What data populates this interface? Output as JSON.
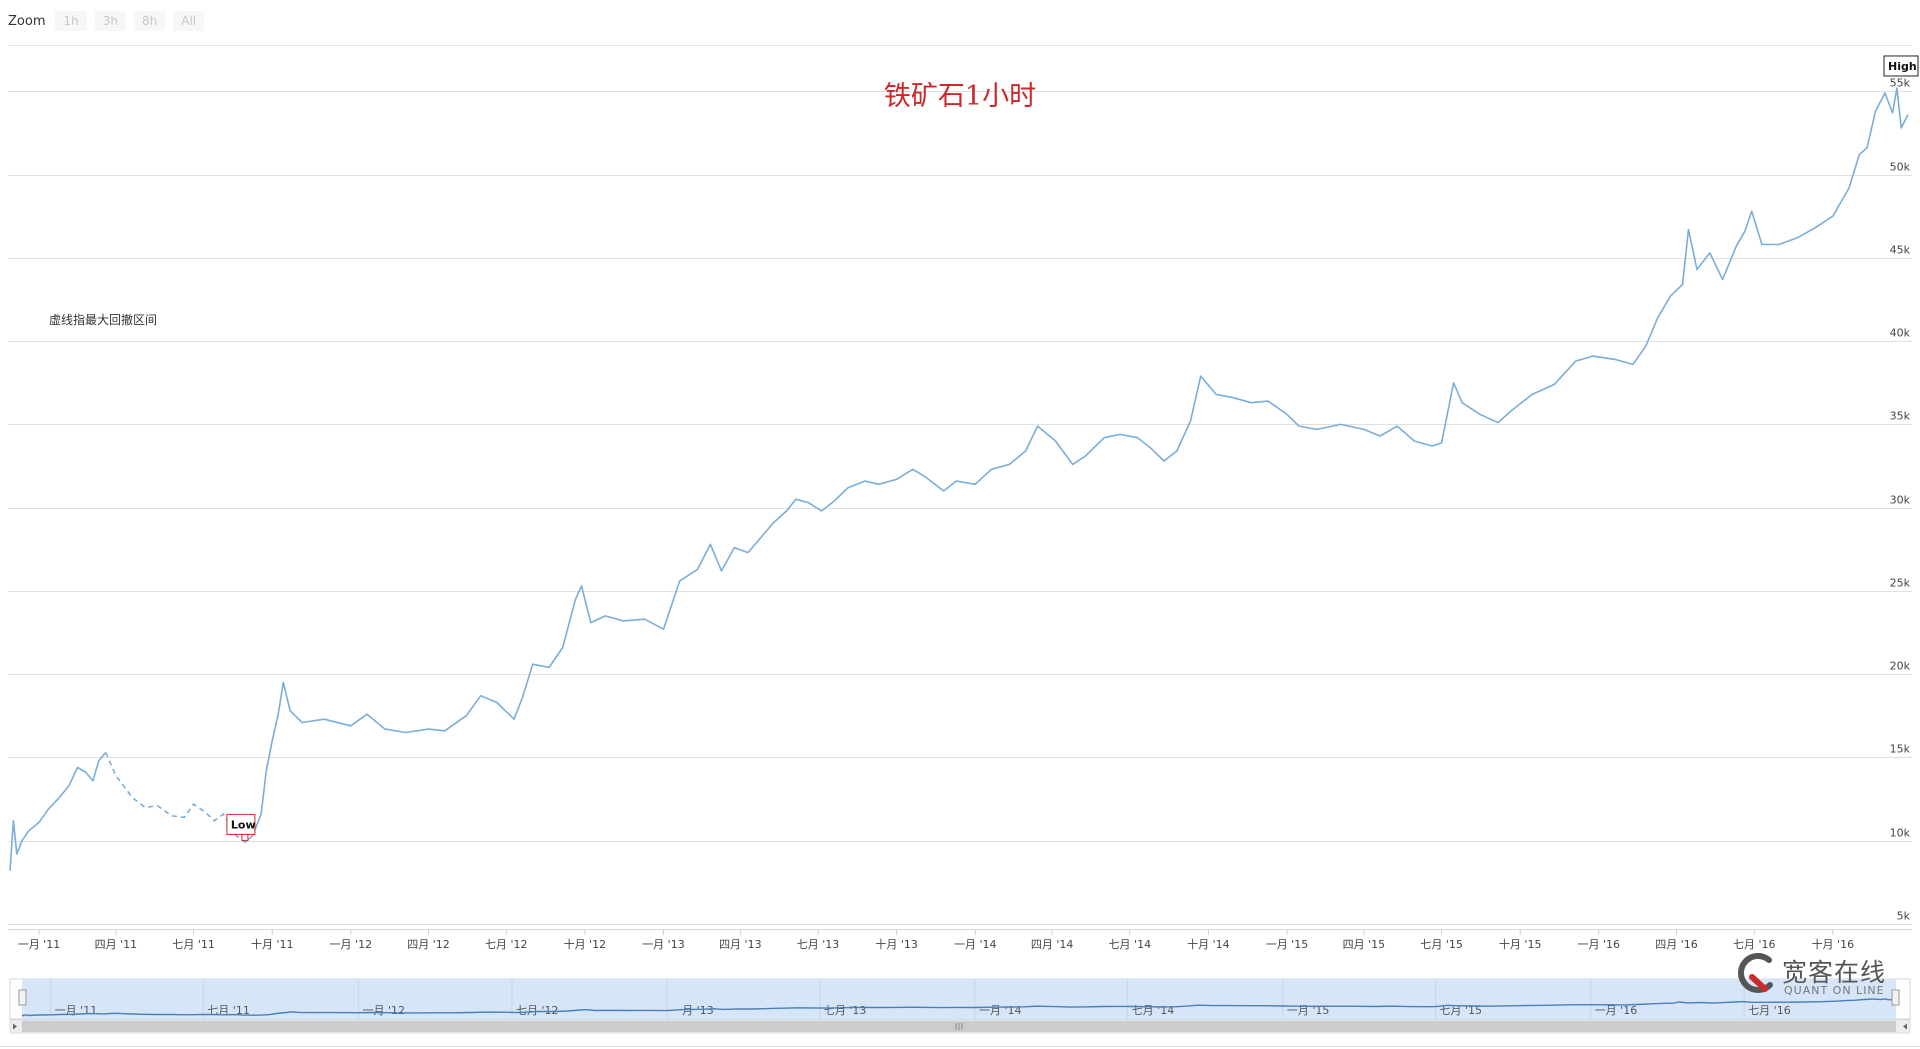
{
  "zoom": {
    "label": "Zoom",
    "buttons": [
      "1h",
      "3h",
      "8h",
      "All"
    ]
  },
  "annotation_note": "虚线指最大回撤区间",
  "watermark": {
    "cn": "宽客在线",
    "en": "QUANT ON LINE"
  },
  "colors": {
    "line": "#7aaed8",
    "title": "#cc2a2a",
    "grid": "#e0e0e0",
    "navigator_fill": "#d6e6f8",
    "navigator_line": "#4a7fb8",
    "low_box": "#cc2a2a"
  },
  "chart_data": {
    "type": "line",
    "title": "铁矿石1小时",
    "xlabel": "",
    "ylabel": "",
    "x_range": [
      "2010-11-28",
      "2016-12-28"
    ],
    "ylim": [
      5000,
      57000
    ],
    "y_ticks": [
      5000,
      10000,
      15000,
      20000,
      25000,
      30000,
      35000,
      40000,
      45000,
      50000,
      55000
    ],
    "y_tick_labels": [
      "5k",
      "10k",
      "15k",
      "20k",
      "25k",
      "30k",
      "35k",
      "40k",
      "45k",
      "50k",
      "55k"
    ],
    "x_ticks": [
      {
        "date": "2011-01-01",
        "label": "一月 '11"
      },
      {
        "date": "2011-04-01",
        "label": "四月 '11"
      },
      {
        "date": "2011-07-01",
        "label": "七月 '11"
      },
      {
        "date": "2011-10-01",
        "label": "十月 '11"
      },
      {
        "date": "2012-01-01",
        "label": "一月 '12"
      },
      {
        "date": "2012-04-01",
        "label": "四月 '12"
      },
      {
        "date": "2012-07-01",
        "label": "七月 '12"
      },
      {
        "date": "2012-10-01",
        "label": "十月 '12"
      },
      {
        "date": "2013-01-01",
        "label": "一月 '13"
      },
      {
        "date": "2013-04-01",
        "label": "四月 '13"
      },
      {
        "date": "2013-07-01",
        "label": "七月 '13"
      },
      {
        "date": "2013-10-01",
        "label": "十月 '13"
      },
      {
        "date": "2014-01-01",
        "label": "一月 '14"
      },
      {
        "date": "2014-04-01",
        "label": "四月 '14"
      },
      {
        "date": "2014-07-01",
        "label": "七月 '14"
      },
      {
        "date": "2014-10-01",
        "label": "十月 '14"
      },
      {
        "date": "2015-01-01",
        "label": "一月 '15"
      },
      {
        "date": "2015-04-01",
        "label": "四月 '15"
      },
      {
        "date": "2015-07-01",
        "label": "七月 '15"
      },
      {
        "date": "2015-10-01",
        "label": "十月 '15"
      },
      {
        "date": "2016-01-01",
        "label": "一月 '16"
      },
      {
        "date": "2016-04-01",
        "label": "四月 '16"
      },
      {
        "date": "2016-07-01",
        "label": "七月 '16"
      },
      {
        "date": "2016-10-01",
        "label": "十月 '16"
      }
    ],
    "grid": true,
    "legend": "none",
    "series": [
      {
        "dashed_range": [
          "2011-03-20",
          "2011-08-30"
        ],
        "points": [
          [
            "2010-11-28",
            8200
          ],
          [
            "2010-12-02",
            11200
          ],
          [
            "2010-12-06",
            9200
          ],
          [
            "2010-12-12",
            10000
          ],
          [
            "2010-12-20",
            10600
          ],
          [
            "2011-01-01",
            11100
          ],
          [
            "2011-01-12",
            11900
          ],
          [
            "2011-01-25",
            12600
          ],
          [
            "2011-02-05",
            13300
          ],
          [
            "2011-02-15",
            14400
          ],
          [
            "2011-02-25",
            14100
          ],
          [
            "2011-03-05",
            13600
          ],
          [
            "2011-03-12",
            14800
          ],
          [
            "2011-03-20",
            15300
          ],
          [
            "2011-04-01",
            13900
          ],
          [
            "2011-04-10",
            13300
          ],
          [
            "2011-04-20",
            12600
          ],
          [
            "2011-05-05",
            12000
          ],
          [
            "2011-05-20",
            12100
          ],
          [
            "2011-06-05",
            11500
          ],
          [
            "2011-06-20",
            11400
          ],
          [
            "2011-07-01",
            12200
          ],
          [
            "2011-07-15",
            11700
          ],
          [
            "2011-07-25",
            11200
          ],
          [
            "2011-08-05",
            11600
          ],
          [
            "2011-08-18",
            10400
          ],
          [
            "2011-08-30",
            9900
          ],
          [
            "2011-09-08",
            10300
          ],
          [
            "2011-09-18",
            11600
          ],
          [
            "2011-09-24",
            14200
          ],
          [
            "2011-10-01",
            16000
          ],
          [
            "2011-10-08",
            17600
          ],
          [
            "2011-10-14",
            19500
          ],
          [
            "2011-10-22",
            17800
          ],
          [
            "2011-11-05",
            17100
          ],
          [
            "2011-12-01",
            17300
          ],
          [
            "2012-01-01",
            16900
          ],
          [
            "2012-01-20",
            17600
          ],
          [
            "2012-02-10",
            16700
          ],
          [
            "2012-03-05",
            16500
          ],
          [
            "2012-04-01",
            16700
          ],
          [
            "2012-04-20",
            16600
          ],
          [
            "2012-05-15",
            17500
          ],
          [
            "2012-06-01",
            18700
          ],
          [
            "2012-06-20",
            18300
          ],
          [
            "2012-07-10",
            17300
          ],
          [
            "2012-07-20",
            18600
          ],
          [
            "2012-08-01",
            20600
          ],
          [
            "2012-08-20",
            20400
          ],
          [
            "2012-09-05",
            21600
          ],
          [
            "2012-09-20",
            24500
          ],
          [
            "2012-09-27",
            25300
          ],
          [
            "2012-10-08",
            23100
          ],
          [
            "2012-10-25",
            23500
          ],
          [
            "2012-11-15",
            23200
          ],
          [
            "2012-12-10",
            23300
          ],
          [
            "2013-01-01",
            22700
          ],
          [
            "2013-01-20",
            25600
          ],
          [
            "2013-02-10",
            26300
          ],
          [
            "2013-02-25",
            27800
          ],
          [
            "2013-03-10",
            26200
          ],
          [
            "2013-03-25",
            27600
          ],
          [
            "2013-04-10",
            27300
          ],
          [
            "2013-04-25",
            28200
          ],
          [
            "2013-05-10",
            29100
          ],
          [
            "2013-05-25",
            29800
          ],
          [
            "2013-06-05",
            30500
          ],
          [
            "2013-06-20",
            30300
          ],
          [
            "2013-07-05",
            29800
          ],
          [
            "2013-07-20",
            30400
          ],
          [
            "2013-08-05",
            31200
          ],
          [
            "2013-08-25",
            31600
          ],
          [
            "2013-09-10",
            31400
          ],
          [
            "2013-10-01",
            31700
          ],
          [
            "2013-10-20",
            32300
          ],
          [
            "2013-11-05",
            31800
          ],
          [
            "2013-11-25",
            31000
          ],
          [
            "2013-12-10",
            31600
          ],
          [
            "2014-01-01",
            31400
          ],
          [
            "2014-01-20",
            32300
          ],
          [
            "2014-02-10",
            32600
          ],
          [
            "2014-03-01",
            33400
          ],
          [
            "2014-03-15",
            34900
          ],
          [
            "2014-04-05",
            34000
          ],
          [
            "2014-04-25",
            32600
          ],
          [
            "2014-05-10",
            33100
          ],
          [
            "2014-06-01",
            34200
          ],
          [
            "2014-06-20",
            34400
          ],
          [
            "2014-07-10",
            34200
          ],
          [
            "2014-07-25",
            33600
          ],
          [
            "2014-08-10",
            32800
          ],
          [
            "2014-08-25",
            33400
          ],
          [
            "2014-09-10",
            35200
          ],
          [
            "2014-09-22",
            37900
          ],
          [
            "2014-10-10",
            36800
          ],
          [
            "2014-10-30",
            36600
          ],
          [
            "2014-11-20",
            36300
          ],
          [
            "2014-12-10",
            36400
          ],
          [
            "2015-01-01",
            35600
          ],
          [
            "2015-01-15",
            34900
          ],
          [
            "2015-02-05",
            34700
          ],
          [
            "2015-03-05",
            35000
          ],
          [
            "2015-04-01",
            34700
          ],
          [
            "2015-04-20",
            34300
          ],
          [
            "2015-05-10",
            34900
          ],
          [
            "2015-05-30",
            34000
          ],
          [
            "2015-06-20",
            33700
          ],
          [
            "2015-07-01",
            33900
          ],
          [
            "2015-07-10",
            36200
          ],
          [
            "2015-07-15",
            37500
          ],
          [
            "2015-07-25",
            36300
          ],
          [
            "2015-08-15",
            35600
          ],
          [
            "2015-09-05",
            35100
          ],
          [
            "2015-09-20",
            35800
          ],
          [
            "2015-10-15",
            36800
          ],
          [
            "2015-11-10",
            37400
          ],
          [
            "2015-12-05",
            38800
          ],
          [
            "2015-12-25",
            39100
          ],
          [
            "2016-01-20",
            38900
          ],
          [
            "2016-02-10",
            38600
          ],
          [
            "2016-02-25",
            39700
          ],
          [
            "2016-03-10",
            41400
          ],
          [
            "2016-03-25",
            42700
          ],
          [
            "2016-04-08",
            43400
          ],
          [
            "2016-04-15",
            46700
          ],
          [
            "2016-04-25",
            44300
          ],
          [
            "2016-05-10",
            45300
          ],
          [
            "2016-05-25",
            43700
          ],
          [
            "2016-06-10",
            45700
          ],
          [
            "2016-06-20",
            46600
          ],
          [
            "2016-06-28",
            47800
          ],
          [
            "2016-07-10",
            45800
          ],
          [
            "2016-07-30",
            45800
          ],
          [
            "2016-08-20",
            46200
          ],
          [
            "2016-09-10",
            46800
          ],
          [
            "2016-10-01",
            47500
          ],
          [
            "2016-10-20",
            49200
          ],
          [
            "2016-11-01",
            51200
          ],
          [
            "2016-11-10",
            51600
          ],
          [
            "2016-11-20",
            53800
          ],
          [
            "2016-12-01",
            54900
          ],
          [
            "2016-12-10",
            53700
          ],
          [
            "2016-12-15",
            55200
          ],
          [
            "2016-12-20",
            52800
          ],
          [
            "2016-12-28",
            53600
          ]
        ]
      }
    ],
    "annotations": [
      {
        "label": "Low",
        "date": "2011-08-30",
        "value": 9900
      },
      {
        "label": "High",
        "date": "2016-12-15",
        "value": 55200
      }
    ],
    "navigator": {
      "x_ticks": [
        {
          "date": "2011-01-01",
          "label": "一月 '11"
        },
        {
          "date": "2011-07-01",
          "label": "七月 '11"
        },
        {
          "date": "2012-01-01",
          "label": "一月 '12"
        },
        {
          "date": "2012-07-01",
          "label": "七月 '12"
        },
        {
          "date": "2013-01-01",
          "label": "一月 '13"
        },
        {
          "date": "2013-07-01",
          "label": "七月 '13"
        },
        {
          "date": "2014-01-01",
          "label": "一月 '14"
        },
        {
          "date": "2014-07-01",
          "label": "七月 '14"
        },
        {
          "date": "2015-01-01",
          "label": "一月 '15"
        },
        {
          "date": "2015-07-01",
          "label": "七月 '15"
        },
        {
          "date": "2016-01-01",
          "label": "一月 '16"
        },
        {
          "date": "2016-07-01",
          "label": "七月 '16"
        }
      ]
    }
  }
}
